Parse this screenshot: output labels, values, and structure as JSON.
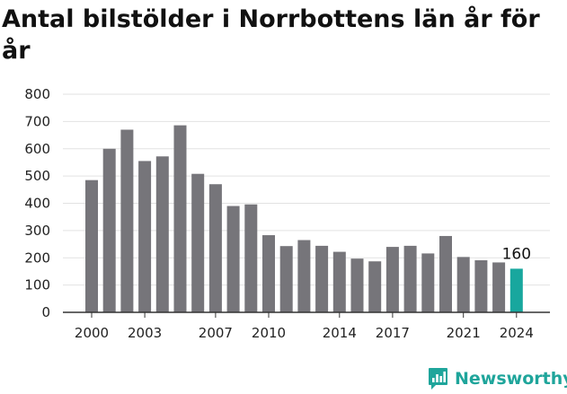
{
  "title": "Antal bilstölder i Norrbottens län år för år",
  "brand": {
    "name": "Newsworthy",
    "icon": "newsworthy-logo-icon"
  },
  "colors": {
    "bar": "#76757a",
    "highlight": "#18a79e",
    "grid": "#e2e2e2",
    "axis": "#333333"
  },
  "chart_data": {
    "type": "bar",
    "title": "Antal bilstölder i Norrbottens län år för år",
    "xlabel": "",
    "ylabel": "",
    "categories": [
      "2000",
      "2001",
      "2002",
      "2003",
      "2004",
      "2005",
      "2006",
      "2007",
      "2008",
      "2009",
      "2010",
      "2011",
      "2012",
      "2013",
      "2014",
      "2015",
      "2016",
      "2017",
      "2018",
      "2019",
      "2020",
      "2021",
      "2022",
      "2023",
      "2024"
    ],
    "values": [
      485,
      600,
      670,
      555,
      572,
      686,
      508,
      470,
      390,
      396,
      283,
      243,
      265,
      244,
      222,
      197,
      187,
      240,
      244,
      216,
      280,
      203,
      191,
      183,
      160
    ],
    "ylim": [
      0,
      800
    ],
    "yticks": [
      0,
      100,
      200,
      300,
      400,
      500,
      600,
      700,
      800
    ],
    "xtick_labels": [
      "2000",
      "2003",
      "2007",
      "2010",
      "2014",
      "2017",
      "2021",
      "2024"
    ],
    "highlight": {
      "category": "2024",
      "label": "160"
    },
    "grid": true,
    "legend": "none"
  }
}
